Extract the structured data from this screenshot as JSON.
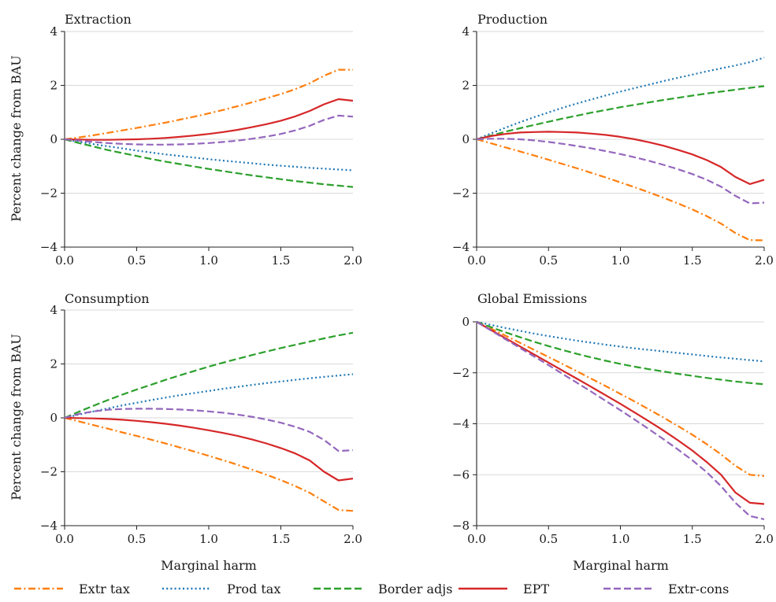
{
  "chart_data": [
    {
      "type": "line",
      "title": "Extraction",
      "xlabel": "",
      "ylabel": "Percent change from BAU",
      "xlim": [
        0,
        2
      ],
      "ylim": [
        -4,
        4
      ],
      "xticks": [
        "0.0",
        "0.5",
        "1.0",
        "1.5",
        "2.0"
      ],
      "yticks": [
        "−4",
        "−2",
        "0",
        "2",
        "4"
      ],
      "x": [
        0,
        0.1,
        0.2,
        0.3,
        0.4,
        0.5,
        0.6,
        0.7,
        0.8,
        0.9,
        1.0,
        1.1,
        1.2,
        1.3,
        1.4,
        1.5,
        1.6,
        1.7,
        1.8,
        1.9,
        2.0
      ],
      "series": [
        {
          "name": "Extr tax",
          "values": [
            0,
            0.07,
            0.15,
            0.24,
            0.33,
            0.42,
            0.52,
            0.62,
            0.73,
            0.84,
            0.96,
            1.09,
            1.23,
            1.37,
            1.52,
            1.68,
            1.86,
            2.08,
            2.36,
            2.58,
            2.58
          ]
        },
        {
          "name": "Prod tax",
          "values": [
            0,
            -0.09,
            -0.18,
            -0.26,
            -0.34,
            -0.42,
            -0.49,
            -0.56,
            -0.62,
            -0.68,
            -0.74,
            -0.79,
            -0.84,
            -0.89,
            -0.94,
            -0.98,
            -1.02,
            -1.06,
            -1.09,
            -1.12,
            -1.15
          ]
        },
        {
          "name": "Border adjs",
          "values": [
            0,
            -0.14,
            -0.27,
            -0.4,
            -0.51,
            -0.62,
            -0.73,
            -0.83,
            -0.92,
            -1.01,
            -1.1,
            -1.18,
            -1.26,
            -1.34,
            -1.41,
            -1.48,
            -1.55,
            -1.61,
            -1.67,
            -1.72,
            -1.77
          ]
        },
        {
          "name": "EPT",
          "values": [
            0,
            -0.01,
            -0.02,
            -0.02,
            -0.01,
            0.0,
            0.02,
            0.05,
            0.09,
            0.14,
            0.2,
            0.27,
            0.35,
            0.45,
            0.56,
            0.69,
            0.85,
            1.05,
            1.3,
            1.49,
            1.43
          ]
        },
        {
          "name": "Extr-cons",
          "values": [
            0,
            -0.05,
            -0.1,
            -0.14,
            -0.17,
            -0.19,
            -0.2,
            -0.2,
            -0.19,
            -0.17,
            -0.14,
            -0.1,
            -0.05,
            0.02,
            0.1,
            0.2,
            0.33,
            0.5,
            0.72,
            0.88,
            0.84
          ]
        }
      ]
    },
    {
      "type": "line",
      "title": "Production",
      "xlabel": "",
      "ylabel": "",
      "xlim": [
        0,
        2
      ],
      "ylim": [
        -4,
        4
      ],
      "xticks": [
        "0.0",
        "0.5",
        "1.0",
        "1.5",
        "2.0"
      ],
      "yticks": [
        "−4",
        "−2",
        "0",
        "2",
        "4"
      ],
      "x": [
        0,
        0.1,
        0.2,
        0.3,
        0.4,
        0.5,
        0.6,
        0.7,
        0.8,
        0.9,
        1.0,
        1.1,
        1.2,
        1.3,
        1.4,
        1.5,
        1.6,
        1.7,
        1.8,
        1.9,
        2.0
      ],
      "series": [
        {
          "name": "Extr tax",
          "values": [
            0,
            -0.15,
            -0.3,
            -0.45,
            -0.6,
            -0.76,
            -0.92,
            -1.08,
            -1.25,
            -1.42,
            -1.6,
            -1.78,
            -1.97,
            -2.17,
            -2.38,
            -2.6,
            -2.85,
            -3.13,
            -3.48,
            -3.74,
            -3.75
          ]
        },
        {
          "name": "Prod tax",
          "values": [
            0,
            0.22,
            0.43,
            0.63,
            0.82,
            1.0,
            1.17,
            1.33,
            1.48,
            1.63,
            1.77,
            1.9,
            2.03,
            2.16,
            2.28,
            2.4,
            2.52,
            2.63,
            2.74,
            2.86,
            3.03
          ]
        },
        {
          "name": "Border adjs",
          "values": [
            0,
            0.14,
            0.28,
            0.41,
            0.53,
            0.65,
            0.77,
            0.88,
            0.99,
            1.09,
            1.19,
            1.28,
            1.37,
            1.46,
            1.54,
            1.62,
            1.7,
            1.77,
            1.84,
            1.91,
            1.97
          ]
        },
        {
          "name": "EPT",
          "values": [
            0,
            0.12,
            0.2,
            0.25,
            0.27,
            0.28,
            0.27,
            0.25,
            0.21,
            0.16,
            0.09,
            0.0,
            -0.11,
            -0.24,
            -0.39,
            -0.56,
            -0.77,
            -1.03,
            -1.4,
            -1.66,
            -1.5
          ]
        },
        {
          "name": "Extr-cons",
          "values": [
            0,
            0.02,
            0.02,
            0.0,
            -0.04,
            -0.1,
            -0.17,
            -0.25,
            -0.34,
            -0.44,
            -0.55,
            -0.67,
            -0.8,
            -0.95,
            -1.11,
            -1.29,
            -1.5,
            -1.76,
            -2.1,
            -2.38,
            -2.35
          ]
        }
      ]
    },
    {
      "type": "line",
      "title": "Consumption",
      "xlabel": "Marginal harm",
      "ylabel": "Percent change from BAU",
      "xlim": [
        0,
        2
      ],
      "ylim": [
        -4,
        4
      ],
      "xticks": [
        "0.0",
        "0.5",
        "1.0",
        "1.5",
        "2.0"
      ],
      "yticks": [
        "−4",
        "−2",
        "0",
        "2",
        "4"
      ],
      "x": [
        0,
        0.1,
        0.2,
        0.3,
        0.4,
        0.5,
        0.6,
        0.7,
        0.8,
        0.9,
        1.0,
        1.1,
        1.2,
        1.3,
        1.4,
        1.5,
        1.6,
        1.7,
        1.8,
        1.9,
        2.0
      ],
      "series": [
        {
          "name": "Extr tax",
          "values": [
            0,
            -0.13,
            -0.27,
            -0.4,
            -0.54,
            -0.67,
            -0.81,
            -0.95,
            -1.1,
            -1.25,
            -1.41,
            -1.57,
            -1.74,
            -1.92,
            -2.11,
            -2.31,
            -2.53,
            -2.78,
            -3.1,
            -3.42,
            -3.45
          ]
        },
        {
          "name": "Prod tax",
          "values": [
            0,
            0.12,
            0.24,
            0.35,
            0.46,
            0.56,
            0.66,
            0.75,
            0.84,
            0.92,
            1.0,
            1.08,
            1.15,
            1.22,
            1.29,
            1.35,
            1.41,
            1.47,
            1.52,
            1.57,
            1.62
          ]
        },
        {
          "name": "Border adjs",
          "values": [
            0,
            0.23,
            0.45,
            0.66,
            0.86,
            1.05,
            1.23,
            1.41,
            1.58,
            1.74,
            1.9,
            2.05,
            2.19,
            2.33,
            2.46,
            2.59,
            2.71,
            2.83,
            2.95,
            3.06,
            3.16
          ]
        },
        {
          "name": "EPT",
          "values": [
            0,
            -0.01,
            -0.02,
            -0.04,
            -0.07,
            -0.11,
            -0.16,
            -0.22,
            -0.29,
            -0.37,
            -0.46,
            -0.56,
            -0.67,
            -0.8,
            -0.95,
            -1.12,
            -1.32,
            -1.58,
            -2.0,
            -2.32,
            -2.25
          ]
        },
        {
          "name": "Extr-cons",
          "values": [
            0,
            0.15,
            0.24,
            0.3,
            0.33,
            0.34,
            0.34,
            0.33,
            0.31,
            0.28,
            0.24,
            0.19,
            0.12,
            0.04,
            -0.06,
            -0.18,
            -0.33,
            -0.52,
            -0.82,
            -1.23,
            -1.2
          ]
        }
      ]
    },
    {
      "type": "line",
      "title": "Global Emissions",
      "xlabel": "Marginal harm",
      "ylabel": "",
      "xlim": [
        0,
        2
      ],
      "ylim": [
        -8,
        0
      ],
      "xticks": [
        "0.0",
        "0.5",
        "1.0",
        "1.5",
        "2.0"
      ],
      "yticks": [
        "−8",
        "−6",
        "−4",
        "−2",
        "0"
      ],
      "x": [
        0,
        0.1,
        0.2,
        0.3,
        0.4,
        0.5,
        0.6,
        0.7,
        0.8,
        0.9,
        1.0,
        1.1,
        1.2,
        1.3,
        1.4,
        1.5,
        1.6,
        1.7,
        1.8,
        1.9,
        2.0
      ],
      "series": [
        {
          "name": "Extr tax",
          "values": [
            0,
            -0.27,
            -0.54,
            -0.82,
            -1.1,
            -1.38,
            -1.66,
            -1.95,
            -2.24,
            -2.53,
            -2.83,
            -3.13,
            -3.44,
            -3.76,
            -4.09,
            -4.43,
            -4.8,
            -5.2,
            -5.65,
            -6.0,
            -6.05
          ]
        },
        {
          "name": "Prod tax",
          "values": [
            0,
            -0.12,
            -0.24,
            -0.35,
            -0.46,
            -0.56,
            -0.65,
            -0.74,
            -0.82,
            -0.9,
            -0.97,
            -1.04,
            -1.1,
            -1.16,
            -1.22,
            -1.28,
            -1.34,
            -1.4,
            -1.45,
            -1.5,
            -1.55
          ]
        },
        {
          "name": "Border adjs",
          "values": [
            0,
            -0.21,
            -0.41,
            -0.6,
            -0.78,
            -0.95,
            -1.11,
            -1.26,
            -1.4,
            -1.53,
            -1.65,
            -1.76,
            -1.86,
            -1.95,
            -2.04,
            -2.12,
            -2.2,
            -2.27,
            -2.34,
            -2.4,
            -2.45
          ]
        },
        {
          "name": "EPT",
          "values": [
            0,
            -0.32,
            -0.64,
            -0.96,
            -1.28,
            -1.6,
            -1.92,
            -2.24,
            -2.56,
            -2.89,
            -3.22,
            -3.56,
            -3.91,
            -4.27,
            -4.65,
            -5.05,
            -5.5,
            -6.0,
            -6.7,
            -7.1,
            -7.15
          ]
        },
        {
          "name": "Extr-cons",
          "values": [
            0,
            -0.34,
            -0.68,
            -1.02,
            -1.36,
            -1.7,
            -2.05,
            -2.4,
            -2.75,
            -3.11,
            -3.47,
            -3.84,
            -4.22,
            -4.61,
            -5.01,
            -5.43,
            -5.9,
            -6.45,
            -7.1,
            -7.62,
            -7.75
          ]
        }
      ]
    }
  ],
  "series_styles": [
    {
      "name": "Extr tax",
      "color": "#ff7f0e",
      "dash": "dashdot"
    },
    {
      "name": "Prod tax",
      "color": "#1f77b4",
      "dash": "dotted"
    },
    {
      "name": "Border adjs",
      "color": "#2ca02c",
      "dash": "dashed"
    },
    {
      "name": "EPT",
      "color": "#d62728",
      "dash": "solid"
    },
    {
      "name": "Extr-cons",
      "color": "#9467bd",
      "dash": "dashed"
    }
  ],
  "legend": {
    "position": "bottom",
    "entries": [
      "Extr tax",
      "Prod tax",
      "Border adjs",
      "EPT",
      "Extr-cons"
    ]
  }
}
